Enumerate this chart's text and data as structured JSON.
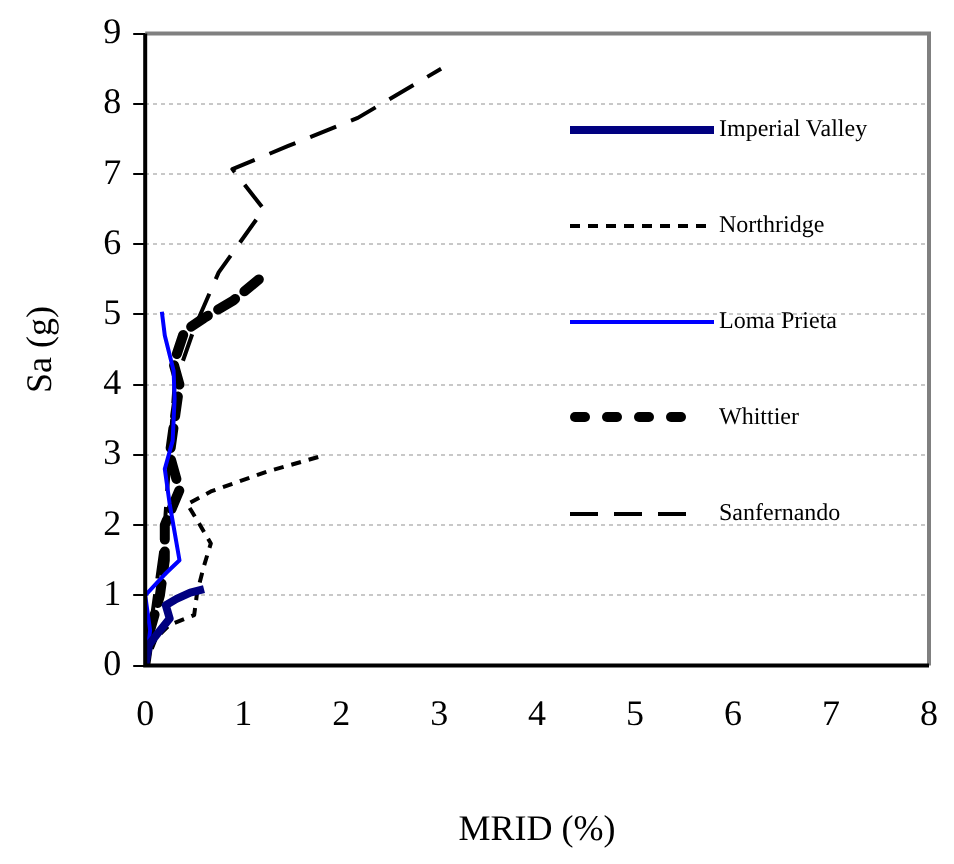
{
  "chart_data": {
    "type": "line",
    "xlabel": "MRID (%)",
    "ylabel": "Sa (g)",
    "xlim": [
      0,
      8
    ],
    "ylim": [
      0,
      9
    ],
    "xticks": [
      0,
      1,
      2,
      3,
      4,
      5,
      6,
      7,
      8
    ],
    "yticks": [
      0,
      1,
      2,
      3,
      4,
      5,
      6,
      7,
      8,
      9
    ],
    "grid": "y",
    "legend": "right",
    "marker": "none",
    "series": [
      {
        "name": "Imperial Valley",
        "color": "#000080",
        "line_style": "solid",
        "x": [
          0,
          0.04,
          0.14,
          0.25,
          0.21,
          0.32,
          0.46,
          0.6
        ],
        "values": [
          0,
          0.3,
          0.48,
          0.67,
          0.86,
          0.95,
          1.04,
          1.09
        ]
      },
      {
        "name": "Northridge",
        "color": "#000000",
        "line_style": "dashed",
        "x": [
          0,
          0.11,
          0.25,
          0.5,
          0.53,
          0.6,
          0.67,
          0.53,
          0.43,
          0.67,
          1.24,
          1.84
        ],
        "values": [
          0,
          0.39,
          0.58,
          0.72,
          1.04,
          1.42,
          1.74,
          2.07,
          2.3,
          2.48,
          2.76,
          3.0
        ]
      },
      {
        "name": "Loma Prieta",
        "color": "#0000ff",
        "line_style": "solid",
        "x": [
          0,
          0.05,
          0,
          0.2,
          0.35,
          0.3,
          0.25,
          0.2,
          0.28,
          0.3,
          0.29,
          0.2,
          0.17
        ],
        "values": [
          0,
          0.5,
          1.0,
          1.3,
          1.5,
          1.9,
          2.3,
          2.8,
          3.2,
          3.8,
          4.2,
          4.7,
          5.04
        ]
      },
      {
        "name": "Whittier",
        "color": "#000000",
        "line_style": "dashed",
        "x": [
          0,
          0.05,
          0.15,
          0.2,
          0.2,
          0.35,
          0.25,
          0.3,
          0.35,
          0.29,
          0.4,
          0.6,
          0.9,
          1.16
        ],
        "values": [
          0,
          0.5,
          1.0,
          1.5,
          2.0,
          2.5,
          3.0,
          3.5,
          4.0,
          4.3,
          4.76,
          4.95,
          5.2,
          5.5
        ]
      },
      {
        "name": "Sanfernando",
        "color": "#000000",
        "line_style": "dashed",
        "x": [
          0,
          0.1,
          0.2,
          0.25,
          0.3,
          0.5,
          0.75,
          1.21,
          0.89,
          1.46,
          2.17,
          3.02
        ],
        "values": [
          0,
          1,
          2,
          3,
          4,
          4.8,
          5.6,
          6.5,
          7.07,
          7.4,
          7.8,
          8.5
        ]
      }
    ]
  }
}
